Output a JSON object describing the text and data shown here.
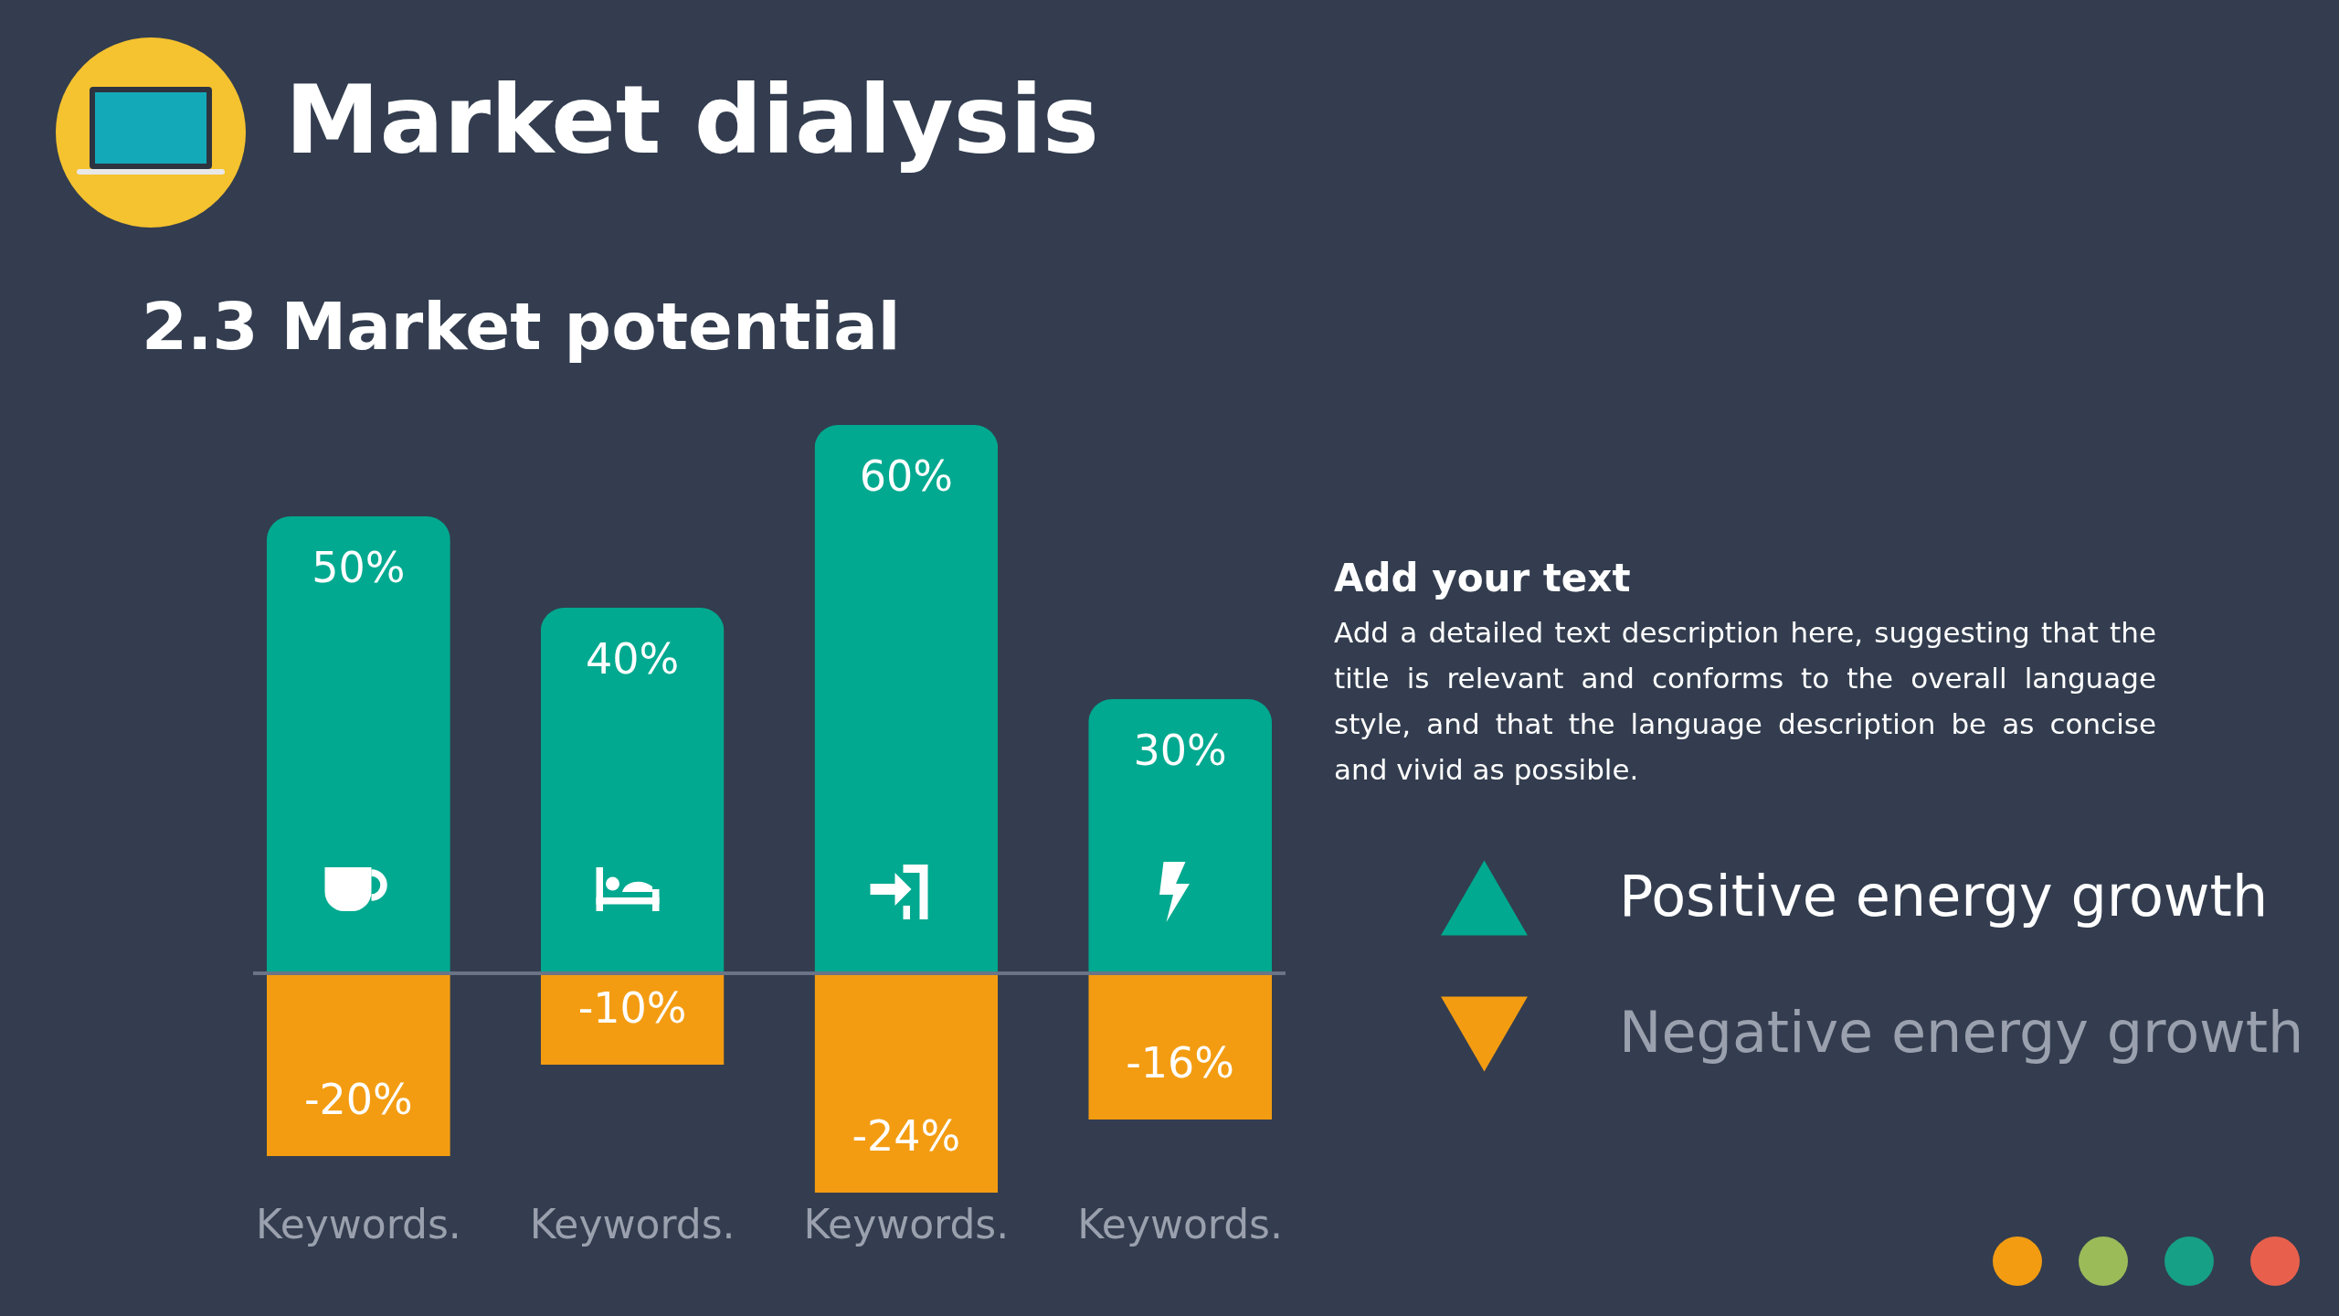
{
  "chart_data": {
    "type": "bar",
    "title": "Market dialysis",
    "subtitle": "2.3 Market potential",
    "categories": [
      "Keywords.",
      "Keywords.",
      "Keywords.",
      "Keywords."
    ],
    "series": [
      {
        "name": "Positive energy growth",
        "color": "#00a98f",
        "values": [
          50,
          40,
          60,
          30
        ],
        "value_labels": [
          "50%",
          "40%",
          "60%",
          "30%"
        ]
      },
      {
        "name": "Negative energy growth",
        "color": "#f39c12",
        "values": [
          -20,
          -10,
          -24,
          -16
        ],
        "value_labels": [
          "-20%",
          "-10%",
          "-24%",
          "-16%"
        ]
      }
    ],
    "ref_lines": [
      {
        "axis": "y",
        "value": 0,
        "color": "#6b7587"
      }
    ],
    "legend": "right",
    "stacked": true,
    "grid": false,
    "tick_labels": "x",
    "annotations": [
      "Add your text",
      "Add a detailed text description here, suggesting that the title is relevant and conforms to the overall language style, and that the language description be as concise and vivid as possible."
    ]
  }
}
